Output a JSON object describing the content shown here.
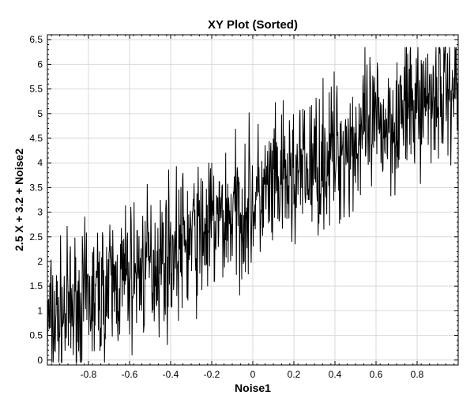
{
  "chart_data": {
    "type": "line",
    "title": "XY Plot (Sorted)",
    "xlabel": "Noise1",
    "ylabel": "2.5 X + 3.2 + Noise2",
    "xlim": [
      -1.0,
      1.0
    ],
    "ylim": [
      -0.1,
      6.6
    ],
    "xticks": [
      -0.8,
      -0.6,
      -0.4,
      -0.2,
      0,
      0.2,
      0.4,
      0.6,
      0.8
    ],
    "xtick_labels": [
      "-0.8",
      "-0.6",
      "-0.4",
      "-0.2",
      "0",
      "0.2",
      "0.4",
      "0.6",
      "0.8"
    ],
    "yticks": [
      0,
      0.5,
      1,
      1.5,
      2,
      2.5,
      3,
      3.5,
      4,
      4.5,
      5,
      5.5,
      6,
      6.5
    ],
    "ytick_labels": [
      "0",
      "0.5",
      "1",
      "1.5",
      "2",
      "2.5",
      "3",
      "3.5",
      "4",
      "4.5",
      "5",
      "5.5",
      "6",
      "6.5"
    ],
    "grid": true,
    "legend": "none",
    "series": [
      {
        "color": "#000000",
        "trend": {
          "slope": 2.5,
          "intercept": 3.2
        },
        "x": [
          -1.0,
          -0.98,
          -0.96,
          -0.94,
          -0.92,
          -0.9,
          -0.88,
          -0.86,
          -0.84,
          -0.82,
          -0.8,
          -0.78,
          -0.76,
          -0.74,
          -0.72,
          -0.7,
          -0.68,
          -0.66,
          -0.64,
          -0.62,
          -0.6,
          -0.58,
          -0.56,
          -0.54,
          -0.52,
          -0.5,
          -0.48,
          -0.46,
          -0.44,
          -0.42,
          -0.4,
          -0.38,
          -0.36,
          -0.34,
          -0.32,
          -0.3,
          -0.28,
          -0.26,
          -0.24,
          -0.22,
          -0.2,
          -0.18,
          -0.16,
          -0.14,
          -0.12,
          -0.1,
          -0.08,
          -0.06,
          -0.04,
          -0.02,
          0,
          0.02,
          0.04,
          0.06,
          0.08,
          0.1,
          0.12,
          0.14,
          0.16,
          0.18,
          0.2,
          0.22,
          0.24,
          0.26,
          0.28,
          0.3,
          0.32,
          0.34,
          0.36,
          0.38,
          0.4,
          0.42,
          0.44,
          0.46,
          0.48,
          0.5,
          0.52,
          0.54,
          0.56,
          0.58,
          0.6,
          0.62,
          0.64,
          0.66,
          0.68,
          0.7,
          0.72,
          0.74,
          0.76,
          0.78,
          0.8,
          0.82,
          0.84,
          0.86,
          0.88,
          0.9,
          0.92,
          0.94,
          0.96,
          0.98,
          1.0
        ],
        "y": [
          0.9,
          0.2,
          1.5,
          0.3,
          1.7,
          0.0,
          1.8,
          0.6,
          2.0,
          0.5,
          1.9,
          0.5,
          2.1,
          0.8,
          2.2,
          0.9,
          2.4,
          1.1,
          2.6,
          1.0,
          2.5,
          1.3,
          2.6,
          1.2,
          2.8,
          1.5,
          3.0,
          1.6,
          3.1,
          1.7,
          2.9,
          2.0,
          3.3,
          2.1,
          3.5,
          2.2,
          3.4,
          2.4,
          3.6,
          2.5,
          3.8,
          2.6,
          3.9,
          2.7,
          4.0,
          2.9,
          4.1,
          3.0,
          4.3,
          3.2,
          4.2,
          3.3,
          4.5,
          3.3,
          4.6,
          3.5,
          4.7,
          3.6,
          4.8,
          3.7,
          4.7,
          3.8,
          5.0,
          4.0,
          5.1,
          4.1,
          5.2,
          4.2,
          5.3,
          4.1,
          5.5,
          4.4,
          5.4,
          4.5,
          5.6,
          4.6,
          5.7,
          4.6,
          5.8,
          4.7,
          5.9,
          4.9,
          6.0,
          5.0,
          6.1,
          5.1,
          6.0,
          5.2,
          6.2,
          5.3,
          6.2,
          5.2,
          6.3,
          5.5,
          6.3,
          5.6,
          6.2,
          5.4,
          6.1,
          5.3,
          5.8
        ]
      }
    ]
  }
}
